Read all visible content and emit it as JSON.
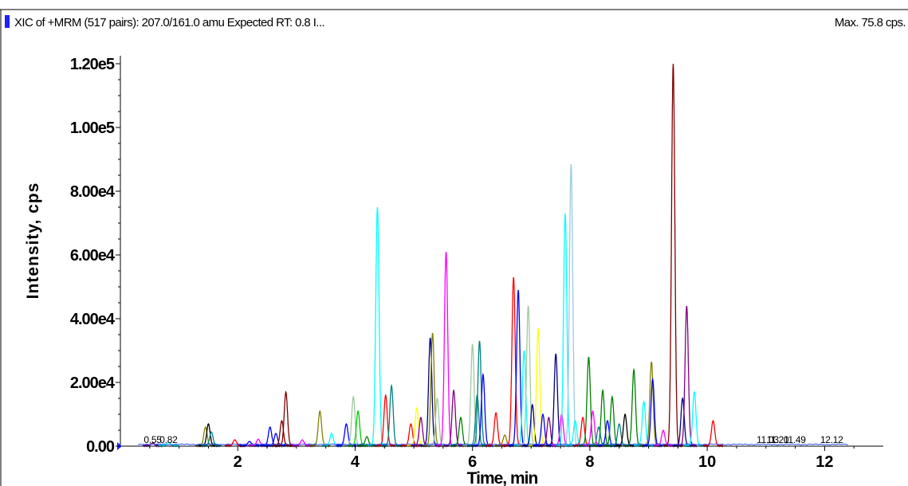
{
  "header": {
    "title": "XIC of +MRM (517 pairs): 207.0/161.0 amu Expected RT: 0.8 I...",
    "max_label": "Max. 75.8 cps."
  },
  "chart_data": {
    "type": "line",
    "title": "XIC of +MRM (517 pairs): 207.0/161.0 amu Expected RT: 0.8 I...",
    "xlabel": "Time, min",
    "ylabel": "Intensity, cps",
    "xlim": [
      0.0,
      13.0
    ],
    "ylim": [
      0,
      120000
    ],
    "x_ticks": [
      {
        "value": 2,
        "label": "2"
      },
      {
        "value": 4,
        "label": "4"
      },
      {
        "value": 6,
        "label": "6"
      },
      {
        "value": 8,
        "label": "8"
      },
      {
        "value": 10,
        "label": "10"
      },
      {
        "value": 12,
        "label": "12"
      }
    ],
    "y_ticks": [
      {
        "value": 0,
        "label": "0.00"
      },
      {
        "value": 20000,
        "label": "2.00e4"
      },
      {
        "value": 40000,
        "label": "4.00e4"
      },
      {
        "value": 60000,
        "label": "6.00e4"
      },
      {
        "value": 80000,
        "label": "8.00e4"
      },
      {
        "value": 100000,
        "label": "1.00e5"
      },
      {
        "value": 120000,
        "label": "1.20e5"
      }
    ],
    "rt_labels": [
      {
        "x": 0.55,
        "label": "0.55"
      },
      {
        "x": 0.82,
        "label": "0.82"
      },
      {
        "x": 11.03,
        "label": "11.03"
      },
      {
        "x": 11.2,
        "label": "11.20"
      },
      {
        "x": 11.49,
        "label": "11.49"
      },
      {
        "x": 12.12,
        "label": "12.12"
      }
    ],
    "colors": {
      "darkred": "#800000",
      "cyan": "#00ffff",
      "lightblue": "#99ccdd",
      "magenta": "#ff00ff",
      "blue": "#0000ff",
      "red": "#ff0000",
      "teal": "#008080",
      "olive": "#808000",
      "green": "#008000",
      "lime": "#00cc00",
      "purple": "#800080",
      "navy": "#000080",
      "black": "#000000",
      "yellow": "#ffff00",
      "sage": "#a0c8a0",
      "pink": "#ff99cc",
      "lightgray": "#b0c8c0"
    },
    "peaks": [
      {
        "rt": 0.55,
        "h": 1000,
        "color": "purple"
      },
      {
        "rt": 0.82,
        "h": 1200,
        "color": "cyan"
      },
      {
        "rt": 1.45,
        "h": 6000,
        "color": "olive"
      },
      {
        "rt": 1.5,
        "h": 7000,
        "color": "black"
      },
      {
        "rt": 1.55,
        "h": 4500,
        "color": "teal"
      },
      {
        "rt": 1.95,
        "h": 2000,
        "color": "red"
      },
      {
        "rt": 2.2,
        "h": 1500,
        "color": "blue"
      },
      {
        "rt": 2.35,
        "h": 2200,
        "color": "magenta"
      },
      {
        "rt": 2.55,
        "h": 6000,
        "color": "blue"
      },
      {
        "rt": 2.65,
        "h": 4000,
        "color": "blue"
      },
      {
        "rt": 2.75,
        "h": 8000,
        "color": "darkred"
      },
      {
        "rt": 2.82,
        "h": 17000,
        "color": "darkred"
      },
      {
        "rt": 3.1,
        "h": 2000,
        "color": "magenta"
      },
      {
        "rt": 3.4,
        "h": 11000,
        "color": "olive"
      },
      {
        "rt": 3.6,
        "h": 4000,
        "color": "cyan"
      },
      {
        "rt": 3.85,
        "h": 7000,
        "color": "blue"
      },
      {
        "rt": 3.97,
        "h": 15500,
        "color": "sage"
      },
      {
        "rt": 4.05,
        "h": 11000,
        "color": "lime"
      },
      {
        "rt": 4.2,
        "h": 3000,
        "color": "green"
      },
      {
        "rt": 4.38,
        "h": 75000,
        "color": "cyan"
      },
      {
        "rt": 4.52,
        "h": 16000,
        "color": "red"
      },
      {
        "rt": 4.62,
        "h": 19000,
        "color": "teal"
      },
      {
        "rt": 4.95,
        "h": 7000,
        "color": "red"
      },
      {
        "rt": 5.05,
        "h": 12000,
        "color": "yellow"
      },
      {
        "rt": 5.12,
        "h": 9000,
        "color": "purple"
      },
      {
        "rt": 5.28,
        "h": 34000,
        "color": "navy"
      },
      {
        "rt": 5.32,
        "h": 35500,
        "color": "olive"
      },
      {
        "rt": 5.4,
        "h": 15000,
        "color": "sage"
      },
      {
        "rt": 5.55,
        "h": 61000,
        "color": "magenta"
      },
      {
        "rt": 5.68,
        "h": 17500,
        "color": "purple"
      },
      {
        "rt": 5.8,
        "h": 9000,
        "color": "green"
      },
      {
        "rt": 6.0,
        "h": 32000,
        "color": "sage"
      },
      {
        "rt": 6.08,
        "h": 16000,
        "color": "teal"
      },
      {
        "rt": 6.12,
        "h": 33000,
        "color": "teal"
      },
      {
        "rt": 6.18,
        "h": 22500,
        "color": "blue"
      },
      {
        "rt": 6.4,
        "h": 10500,
        "color": "red"
      },
      {
        "rt": 6.55,
        "h": 3500,
        "color": "olive"
      },
      {
        "rt": 6.7,
        "h": 53000,
        "color": "red"
      },
      {
        "rt": 6.78,
        "h": 49000,
        "color": "blue"
      },
      {
        "rt": 6.88,
        "h": 30000,
        "color": "cyan"
      },
      {
        "rt": 6.95,
        "h": 44000,
        "color": "sage"
      },
      {
        "rt": 7.02,
        "h": 13000,
        "color": "navy"
      },
      {
        "rt": 7.12,
        "h": 37000,
        "color": "yellow"
      },
      {
        "rt": 7.2,
        "h": 10000,
        "color": "blue"
      },
      {
        "rt": 7.3,
        "h": 9000,
        "color": "purple"
      },
      {
        "rt": 7.42,
        "h": 29000,
        "color": "navy"
      },
      {
        "rt": 7.52,
        "h": 10000,
        "color": "magenta"
      },
      {
        "rt": 7.58,
        "h": 73000,
        "color": "cyan"
      },
      {
        "rt": 7.68,
        "h": 88500,
        "color": "lightblue"
      },
      {
        "rt": 7.75,
        "h": 8000,
        "color": "cyan"
      },
      {
        "rt": 7.88,
        "h": 9000,
        "color": "red"
      },
      {
        "rt": 7.98,
        "h": 28000,
        "color": "green"
      },
      {
        "rt": 8.05,
        "h": 11000,
        "color": "magenta"
      },
      {
        "rt": 8.15,
        "h": 6000,
        "color": "teal"
      },
      {
        "rt": 8.22,
        "h": 17500,
        "color": "green"
      },
      {
        "rt": 8.3,
        "h": 8000,
        "color": "blue"
      },
      {
        "rt": 8.38,
        "h": 15500,
        "color": "green"
      },
      {
        "rt": 8.5,
        "h": 7000,
        "color": "teal"
      },
      {
        "rt": 8.6,
        "h": 10000,
        "color": "black"
      },
      {
        "rt": 8.75,
        "h": 24000,
        "color": "green"
      },
      {
        "rt": 8.92,
        "h": 14000,
        "color": "cyan"
      },
      {
        "rt": 9.05,
        "h": 26500,
        "color": "olive"
      },
      {
        "rt": 9.07,
        "h": 21000,
        "color": "blue"
      },
      {
        "rt": 9.25,
        "h": 5000,
        "color": "magenta"
      },
      {
        "rt": 9.42,
        "h": 120000,
        "color": "darkred"
      },
      {
        "rt": 9.58,
        "h": 15000,
        "color": "navy"
      },
      {
        "rt": 9.65,
        "h": 44000,
        "color": "purple"
      },
      {
        "rt": 9.78,
        "h": 17000,
        "color": "cyan"
      },
      {
        "rt": 10.1,
        "h": 8000,
        "color": "red"
      }
    ]
  }
}
